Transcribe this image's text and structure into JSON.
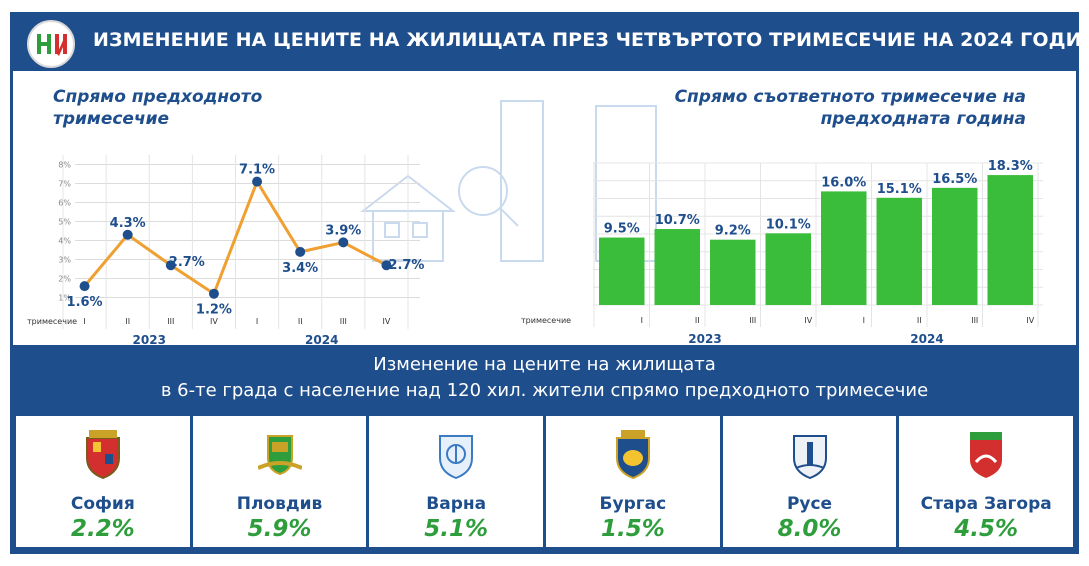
{
  "header": {
    "title": "ИЗМЕНЕНИЕ НА ЦЕНИТЕ НА ЖИЛИЩАТА ПРЕЗ ЧЕТВЪРТОТО ТРИМЕСЕЧИЕ НА 2024 ГОДИНА",
    "logo_text": "НИ"
  },
  "colors": {
    "navy": "#1f4e8c",
    "line": "#f0a030",
    "marker": "#1f4e8c",
    "bar": "#3bbd3c",
    "value_green": "#2e9e3c"
  },
  "chart_data": [
    {
      "type": "line",
      "title": "Спрямо предходното тримесечие",
      "xlabel_prefix": "тримесечие",
      "categories": [
        "I",
        "II",
        "III",
        "IV",
        "I",
        "II",
        "III",
        "IV"
      ],
      "years": [
        "2023",
        "2024"
      ],
      "values": [
        1.6,
        4.3,
        2.7,
        1.2,
        7.1,
        3.4,
        3.9,
        2.7
      ],
      "labels": [
        "1.6%",
        "4.3%",
        "2.7%",
        "1.2%",
        "7.1%",
        "3.4%",
        "3.9%",
        "2.7%"
      ],
      "yticks": [
        "1%",
        "2%",
        "3%",
        "4%",
        "5%",
        "6%",
        "7%",
        "8%"
      ],
      "ylim": [
        0.5,
        8.5
      ],
      "grid": true
    },
    {
      "type": "bar",
      "title": "Спрямо съответното тримесечие на предходната година",
      "xlabel_prefix": "тримесечие",
      "categories": [
        "I",
        "II",
        "III",
        "IV",
        "I",
        "II",
        "III",
        "IV"
      ],
      "years": [
        "2023",
        "2024"
      ],
      "values": [
        9.5,
        10.7,
        9.2,
        10.1,
        16.0,
        15.1,
        16.5,
        18.3
      ],
      "labels": [
        "9.5%",
        "10.7%",
        "9.2%",
        "10.1%",
        "16.0%",
        "15.1%",
        "16.5%",
        "18.3%"
      ],
      "ylim": [
        0,
        20
      ],
      "grid": true
    }
  ],
  "band": {
    "line1": "Изменение на цените на жилищата",
    "line2": "в 6-те града с население над 120 хил. жители спрямо предходното тримесечие"
  },
  "cities": [
    {
      "name": "София",
      "value": "2.2%",
      "emblem": "sofia-coat-of-arms"
    },
    {
      "name": "Пловдив",
      "value": "5.9%",
      "emblem": "plovdiv-coat-of-arms"
    },
    {
      "name": "Варна",
      "value": "5.1%",
      "emblem": "varna-coat-of-arms"
    },
    {
      "name": "Бургас",
      "value": "1.5%",
      "emblem": "burgas-coat-of-arms"
    },
    {
      "name": "Русе",
      "value": "8.0%",
      "emblem": "ruse-coat-of-arms"
    },
    {
      "name": "Стара Загора",
      "value": "4.5%",
      "emblem": "stara-zagora-coat-of-arms"
    }
  ]
}
